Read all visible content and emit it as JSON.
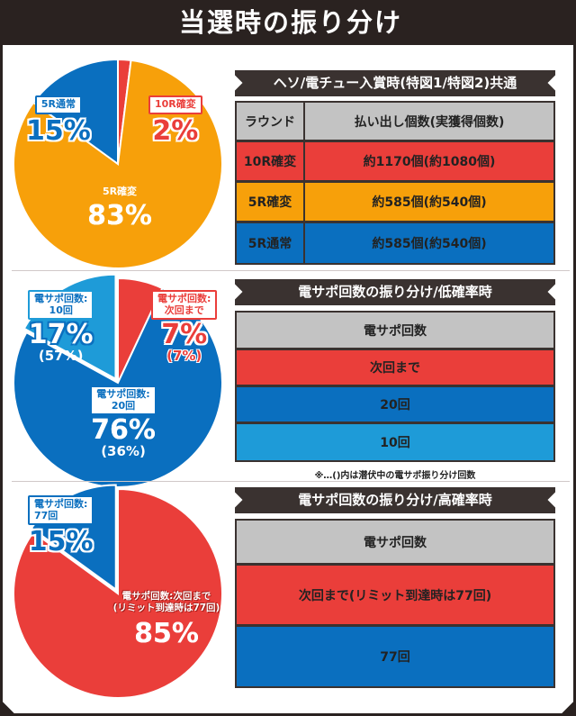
{
  "title": "当選時の振り分け",
  "colors": {
    "red": "#ea3e3a",
    "orange": "#f7a00a",
    "blue": "#0a6fbf",
    "cyan": "#1e9bd8",
    "gray": "#c3c3c3",
    "dark": "#3a3230"
  },
  "section1": {
    "header": "ヘソ/電チュー入賞時(特図1/特図2)共通",
    "columns": [
      "ラウンド",
      "払い出し個数(実獲得個数)"
    ],
    "rows": [
      {
        "round": "10R確変",
        "payout": "約1170個(約1080個)"
      },
      {
        "round": "5R確変",
        "payout": "約585個(約540個)"
      },
      {
        "round": "5R通常",
        "payout": "約585個(約540個)"
      }
    ],
    "pie": [
      {
        "label": "10R確変",
        "pct": "2%",
        "value": 2
      },
      {
        "label": "5R確変",
        "pct": "83%",
        "value": 83
      },
      {
        "label": "5R通常",
        "pct": "15%",
        "value": 15
      }
    ]
  },
  "section2": {
    "header": "電サポ回数の振り分け/低確率時",
    "column": "電サポ回数",
    "rows": [
      "次回まで",
      "20回",
      "10回"
    ],
    "note": "※…()内は潜伏中の電サポ振り分け回数",
    "pie": [
      {
        "label_line1": "電サポ回数:",
        "label_line2": "次回まで",
        "pct": "7%",
        "sub": "(7%)",
        "value": 7
      },
      {
        "label_line1": "電サポ回数:",
        "label_line2": "20回",
        "pct": "76%",
        "sub": "(36%)",
        "value": 76
      },
      {
        "label_line1": "電サポ回数:",
        "label_line2": "10回",
        "pct": "17%",
        "sub": "(57%)",
        "value": 17
      }
    ]
  },
  "section3": {
    "header": "電サポ回数の振り分け/高確率時",
    "column": "電サポ回数",
    "rows": [
      "次回まで(リミット到達時は77回)",
      "77回"
    ],
    "pie": [
      {
        "label_line1": "電サポ回数:次回まで",
        "label_line2": "(リミット到達時は77回)",
        "pct": "85%",
        "value": 85
      },
      {
        "label_line1": "電サポ回数:",
        "label_line2": "77回",
        "pct": "15%",
        "value": 15
      }
    ]
  }
}
